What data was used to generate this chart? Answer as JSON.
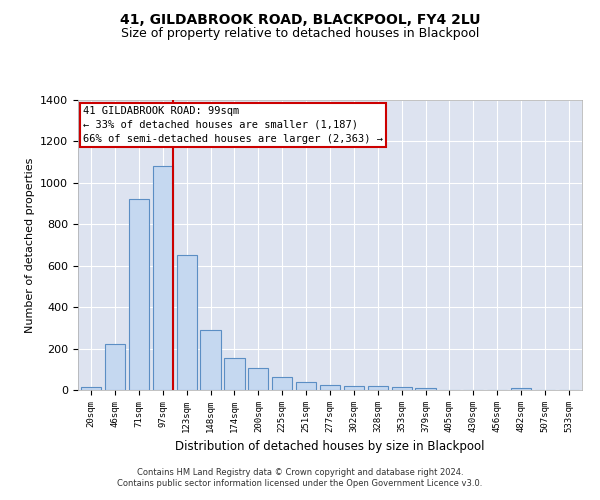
{
  "title": "41, GILDABROOK ROAD, BLACKPOOL, FY4 2LU",
  "subtitle": "Size of property relative to detached houses in Blackpool",
  "xlabel": "Distribution of detached houses by size in Blackpool",
  "ylabel": "Number of detached properties",
  "categories": [
    "20sqm",
    "46sqm",
    "71sqm",
    "97sqm",
    "123sqm",
    "148sqm",
    "174sqm",
    "200sqm",
    "225sqm",
    "251sqm",
    "277sqm",
    "302sqm",
    "328sqm",
    "353sqm",
    "379sqm",
    "405sqm",
    "430sqm",
    "456sqm",
    "482sqm",
    "507sqm",
    "533sqm"
  ],
  "values": [
    15,
    220,
    920,
    1080,
    650,
    290,
    155,
    105,
    65,
    40,
    25,
    20,
    20,
    15,
    12,
    0,
    0,
    0,
    10,
    0,
    0
  ],
  "bar_color": "#c5d8f0",
  "bar_edge_color": "#5b8ec4",
  "background_color": "#dde3f0",
  "grid_color": "#ffffff",
  "redline_color": "#cc0000",
  "annotation_text": "41 GILDABROOK ROAD: 99sqm\n← 33% of detached houses are smaller (1,187)\n66% of semi-detached houses are larger (2,363) →",
  "annotation_box_color": "#ffffff",
  "annotation_box_edge_color": "#cc0000",
  "ylim": [
    0,
    1400
  ],
  "yticks": [
    0,
    200,
    400,
    600,
    800,
    1000,
    1200,
    1400
  ],
  "footnote": "Contains HM Land Registry data © Crown copyright and database right 2024.\nContains public sector information licensed under the Open Government Licence v3.0."
}
